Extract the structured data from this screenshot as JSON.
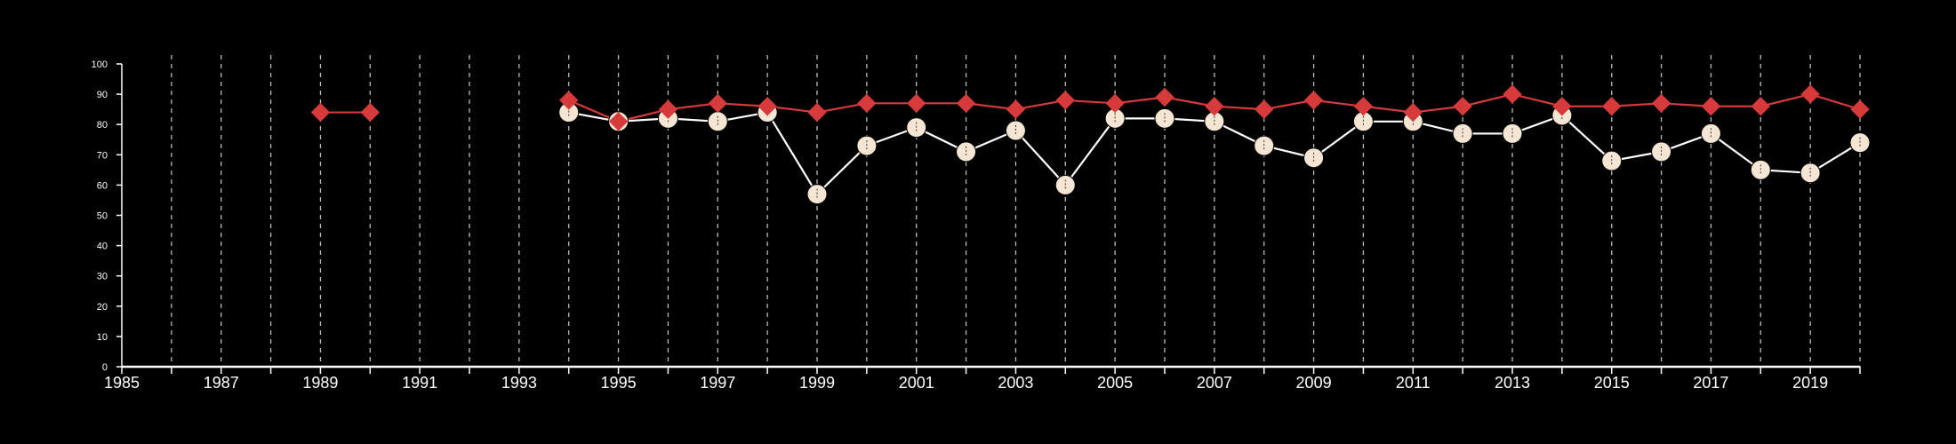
{
  "colors": {
    "background": "#000000",
    "axis": "#ffffff",
    "grid": "#bbbbbb"
  },
  "chart_data": {
    "type": "line",
    "title": "",
    "xlabel": "",
    "ylabel": "",
    "xlim": [
      1985,
      2020
    ],
    "ylim": [
      0,
      100
    ],
    "x_ticks": [
      1985,
      1987,
      1989,
      1991,
      1993,
      1995,
      1997,
      1999,
      2001,
      2003,
      2005,
      2007,
      2009,
      2011,
      2013,
      2015,
      2017,
      2019
    ],
    "y_ticks": [
      0,
      10,
      20,
      30,
      40,
      50,
      60,
      70,
      80,
      90,
      100
    ],
    "vertical_gridlines": "every year, dashed",
    "series": [
      {
        "marker": "circle",
        "color": "#f5e6d3",
        "line_color": "#ffffff",
        "points": [
          [
            1994,
            84
          ],
          [
            1995,
            81
          ],
          [
            1996,
            82
          ],
          [
            1997,
            81
          ],
          [
            1998,
            84
          ],
          [
            1999,
            57
          ],
          [
            2000,
            73
          ],
          [
            2001,
            79
          ],
          [
            2002,
            71
          ],
          [
            2003,
            78
          ],
          [
            2004,
            60
          ],
          [
            2005,
            82
          ],
          [
            2006,
            82
          ],
          [
            2007,
            81
          ],
          [
            2008,
            73
          ],
          [
            2009,
            69
          ],
          [
            2010,
            81
          ],
          [
            2011,
            81
          ],
          [
            2012,
            77
          ],
          [
            2013,
            77
          ],
          [
            2014,
            83
          ],
          [
            2015,
            68
          ],
          [
            2016,
            71
          ],
          [
            2017,
            77
          ],
          [
            2018,
            65
          ],
          [
            2019,
            64
          ],
          [
            2020,
            74
          ]
        ]
      },
      {
        "marker": "diamond",
        "color": "#d63a3a",
        "line_color": "#d63a3a",
        "segments": [
          [
            [
              1989,
              84
            ],
            [
              1990,
              84
            ]
          ],
          [
            [
              1994,
              88
            ],
            [
              1995,
              81
            ],
            [
              1996,
              85
            ],
            [
              1997,
              87
            ],
            [
              1998,
              86
            ],
            [
              1999,
              84
            ],
            [
              2000,
              87
            ],
            [
              2001,
              87
            ],
            [
              2002,
              87
            ],
            [
              2003,
              85
            ],
            [
              2004,
              88
            ],
            [
              2005,
              87
            ],
            [
              2006,
              89
            ],
            [
              2007,
              86
            ],
            [
              2008,
              85
            ],
            [
              2009,
              88
            ],
            [
              2010,
              86
            ],
            [
              2011,
              84
            ],
            [
              2012,
              86
            ],
            [
              2013,
              90
            ],
            [
              2014,
              86
            ],
            [
              2015,
              86
            ],
            [
              2016,
              87
            ],
            [
              2017,
              86
            ],
            [
              2018,
              86
            ],
            [
              2019,
              90
            ],
            [
              2020,
              85
            ]
          ]
        ]
      }
    ]
  }
}
